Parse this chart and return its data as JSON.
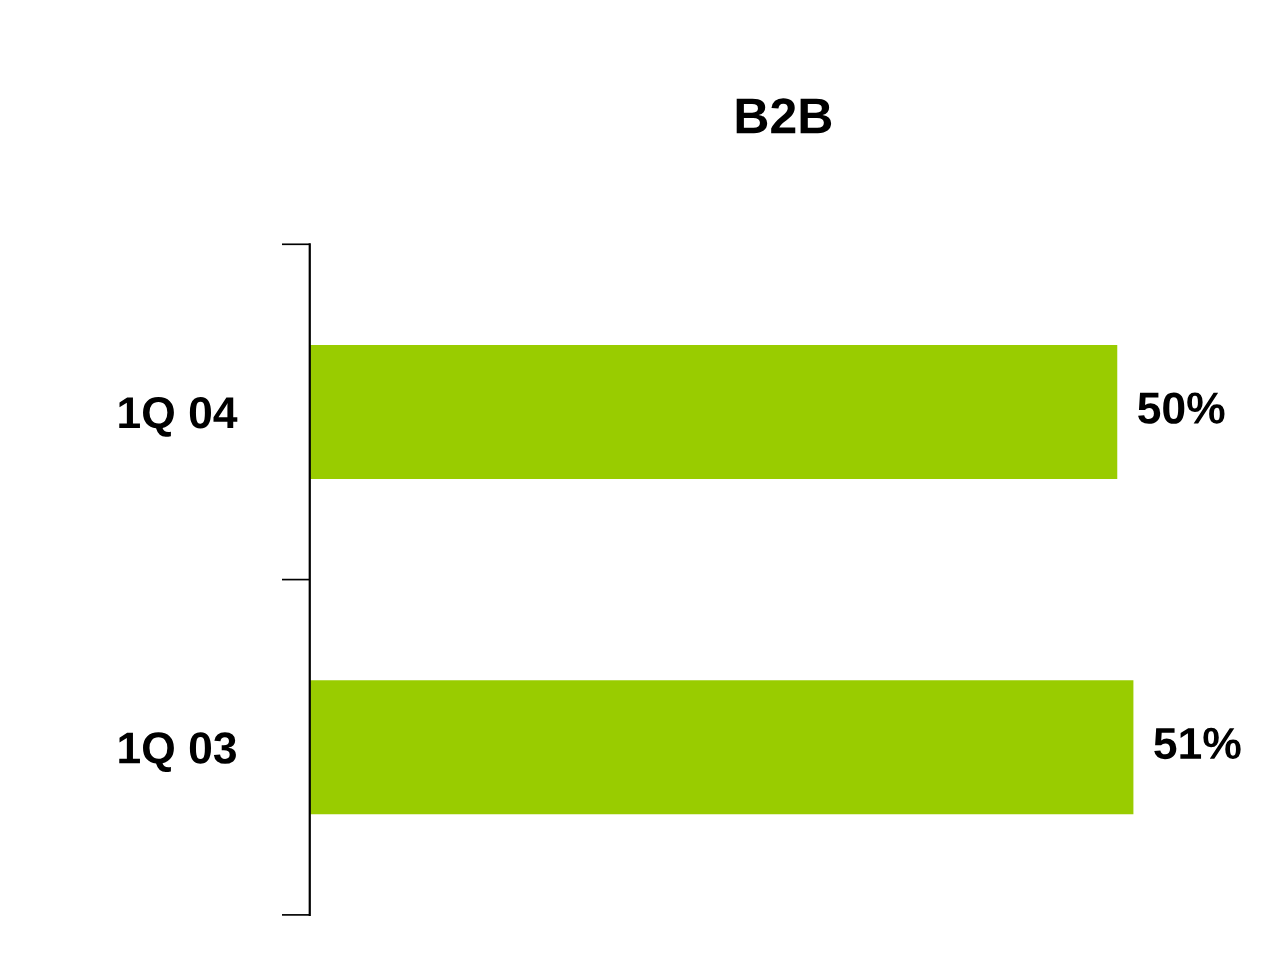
{
  "chart_data": {
    "type": "bar",
    "orientation": "horizontal",
    "title": "B2B",
    "categories": [
      "1Q 04",
      "1Q 03"
    ],
    "values": [
      50,
      51
    ],
    "color": "#99cc00",
    "value_labels": [
      "50%",
      "51%"
    ],
    "grid": false,
    "legend": false,
    "tick_labels": "y"
  }
}
